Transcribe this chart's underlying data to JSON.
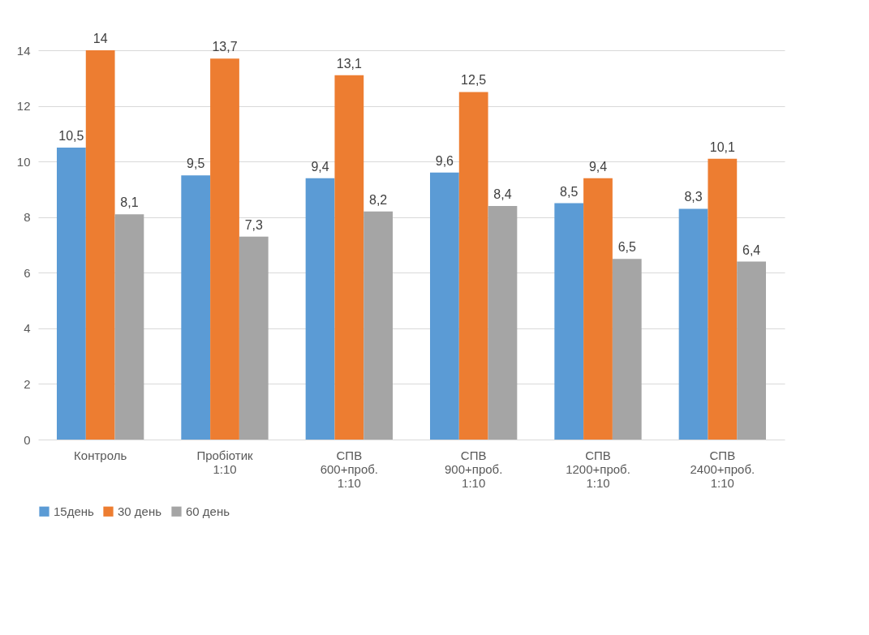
{
  "chart_data": {
    "type": "bar",
    "categories": [
      "Контроль",
      "Пробіотик 1:10",
      "СПВ 600+проб. 1:10",
      "СПВ 900+проб. 1:10",
      "СПВ 1200+проб. 1:10",
      "СПВ 2400+проб. 1:10"
    ],
    "series": [
      {
        "name": "15день",
        "color": "#5b9bd5",
        "values": [
          10.5,
          9.5,
          9.4,
          9.6,
          8.5,
          8.3
        ],
        "value_labels": [
          "10,5",
          "9,5",
          "9,4",
          "9,6",
          "8,5",
          "8,3"
        ]
      },
      {
        "name": "30 день",
        "color": "#ed7d31",
        "values": [
          14,
          13.7,
          13.1,
          12.5,
          9.4,
          10.1
        ],
        "value_labels": [
          "14",
          "13,7",
          "13,1",
          "12,5",
          "9,4",
          "10,1"
        ]
      },
      {
        "name": "60 день",
        "color": "#a5a5a5",
        "values": [
          8.1,
          7.3,
          8.2,
          8.4,
          6.5,
          6.4
        ],
        "value_labels": [
          "8,1",
          "7,3",
          "8,2",
          "8,4",
          "6,5",
          "6,4"
        ]
      }
    ],
    "ylim": [
      0,
      14
    ],
    "yticks": [
      0,
      2,
      4,
      6,
      8,
      10,
      12,
      14
    ],
    "grid": "y",
    "legend": "bottom"
  }
}
